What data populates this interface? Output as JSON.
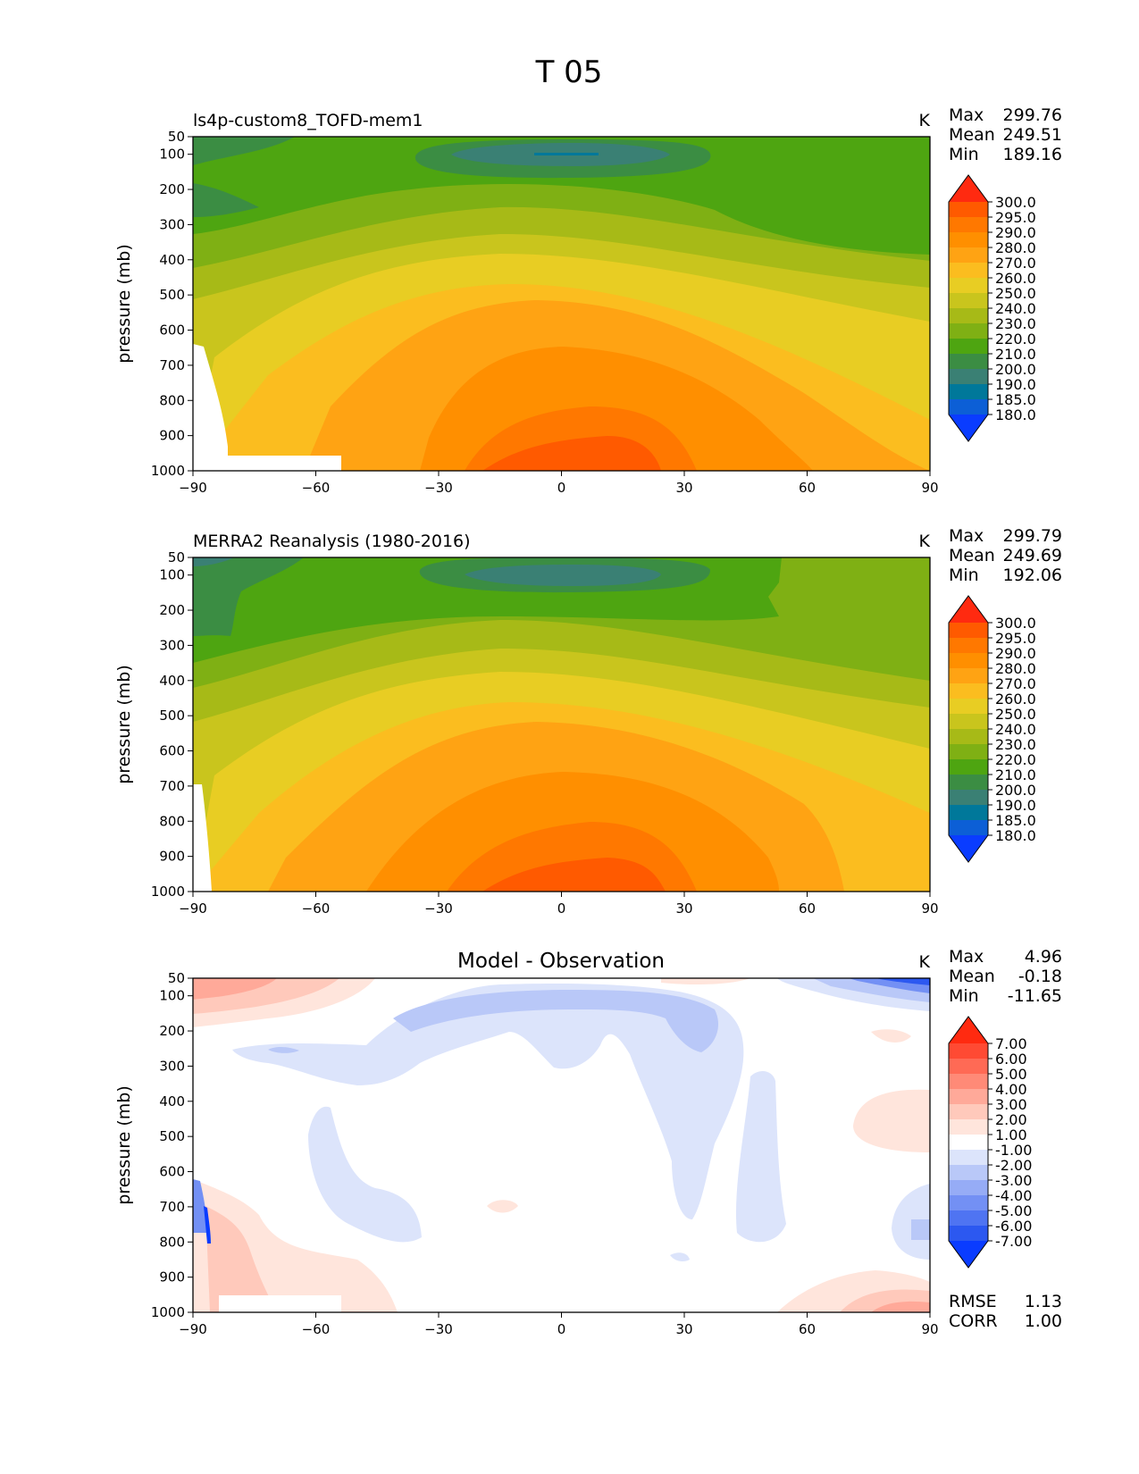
{
  "figure_title": "T 05",
  "chart_data": [
    {
      "type": "contour",
      "title": "ls4p-custom8_TOFD-mem1",
      "units": "K",
      "xlabel": "",
      "ylabel": "pressure (mb)",
      "xlim": [
        -90,
        90
      ],
      "ylim": [
        1000,
        50
      ],
      "xticks": [
        "−90",
        "−60",
        "−30",
        "0",
        "30",
        "60",
        "90"
      ],
      "yticks": [
        "50",
        "100",
        "200",
        "300",
        "400",
        "500",
        "600",
        "700",
        "800",
        "900",
        "1000"
      ],
      "stats": {
        "max_label": "Max",
        "max": "299.76",
        "mean_label": "Mean",
        "mean": "249.51",
        "min_label": "Min",
        "min": "189.16"
      },
      "colorbar_levels": [
        "300.0",
        "295.0",
        "290.0",
        "280.0",
        "270.0",
        "260.0",
        "250.0",
        "240.0",
        "230.0",
        "220.0",
        "210.0",
        "200.0",
        "190.0",
        "185.0",
        "180.0"
      ],
      "colorbar_colors": [
        "#ff2a10",
        "#ff5a00",
        "#ff7800",
        "#ff8f00",
        "#ffa313",
        "#fbbd1f",
        "#e8cd23",
        "#c9c51d",
        "#a7ba17",
        "#7fb014",
        "#4ea511",
        "#3b8d43",
        "#3a8074",
        "#00789a",
        "#0c5fd6",
        "#0a3cff"
      ]
    },
    {
      "type": "contour",
      "title": "MERRA2 Reanalysis (1980-2016)",
      "units": "K",
      "xlabel": "",
      "ylabel": "pressure (mb)",
      "xlim": [
        -90,
        90
      ],
      "ylim": [
        1000,
        50
      ],
      "xticks": [
        "−90",
        "−60",
        "−30",
        "0",
        "30",
        "60",
        "90"
      ],
      "yticks": [
        "50",
        "100",
        "200",
        "300",
        "400",
        "500",
        "600",
        "700",
        "800",
        "900",
        "1000"
      ],
      "stats": {
        "max_label": "Max",
        "max": "299.79",
        "mean_label": "Mean",
        "mean": "249.69",
        "min_label": "Min",
        "min": "192.06"
      },
      "colorbar_levels": [
        "300.0",
        "295.0",
        "290.0",
        "280.0",
        "270.0",
        "260.0",
        "250.0",
        "240.0",
        "230.0",
        "220.0",
        "210.0",
        "200.0",
        "190.0",
        "185.0",
        "180.0"
      ],
      "colorbar_colors": [
        "#ff2a10",
        "#ff5a00",
        "#ff7800",
        "#ff8f00",
        "#ffa313",
        "#fbbd1f",
        "#e8cd23",
        "#c9c51d",
        "#a7ba17",
        "#7fb014",
        "#4ea511",
        "#3b8d43",
        "#3a8074",
        "#00789a",
        "#0c5fd6",
        "#0a3cff"
      ]
    },
    {
      "type": "contour",
      "title": "Model - Observation",
      "units": "K",
      "xlabel": "",
      "ylabel": "pressure (mb)",
      "xlim": [
        -90,
        90
      ],
      "ylim": [
        1000,
        50
      ],
      "xticks": [
        "−90",
        "−60",
        "−30",
        "0",
        "30",
        "60",
        "90"
      ],
      "yticks": [
        "50",
        "100",
        "200",
        "300",
        "400",
        "500",
        "600",
        "700",
        "800",
        "900",
        "1000"
      ],
      "stats": {
        "max_label": "Max",
        "max": "4.96",
        "mean_label": "Mean",
        "mean": "-0.18",
        "min_label": "Min",
        "min": "-11.65"
      },
      "colorbar_levels": [
        "7.00",
        "6.00",
        "5.00",
        "4.00",
        "3.00",
        "2.00",
        "1.00",
        "-1.00",
        "-2.00",
        "-3.00",
        "-4.00",
        "-5.00",
        "-6.00",
        "-7.00"
      ],
      "colorbar_colors": [
        "#ff2a10",
        "#ff4a33",
        "#ff6a55",
        "#ff8a77",
        "#ffa999",
        "#ffc9bb",
        "#ffe5dc",
        "#ffffff",
        "#dce4fb",
        "#b9c8f8",
        "#96acf6",
        "#7390f4",
        "#4f74f2",
        "#2c58f0",
        "#0a3cff"
      ],
      "rmse_label": "RMSE",
      "rmse": "1.13",
      "corr_label": "CORR",
      "corr": "1.00"
    }
  ]
}
